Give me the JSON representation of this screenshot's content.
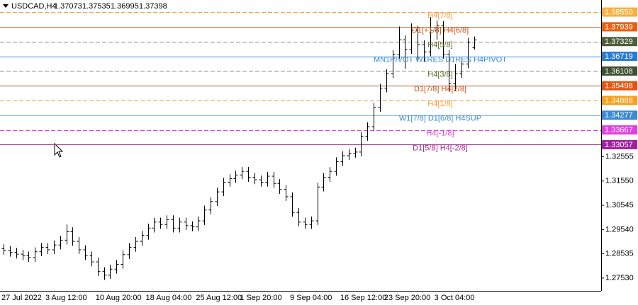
{
  "chart_data": {
    "type": "candlestick",
    "title": "USDCAD,H4",
    "color": "#000000",
    "categories": [
      "27 Jul 2022",
      null,
      null,
      null,
      null,
      null,
      null,
      "3 Aug 12:00",
      null,
      null,
      null,
      null,
      null,
      null,
      null,
      "10 Aug 20:00",
      null,
      null,
      null,
      null,
      null,
      null,
      null,
      "18 Aug 04:00",
      null,
      null,
      null,
      null,
      null,
      null,
      null,
      "25 Aug 12:00",
      null,
      null,
      null,
      null,
      null,
      null,
      "1 Sep 20:00",
      null,
      null,
      null,
      null,
      null,
      null,
      null,
      "9 Sep 04:00",
      null,
      null,
      null,
      null,
      null,
      null,
      null,
      "16 Sep 12:00",
      null,
      null,
      null,
      null,
      null,
      null,
      "23 Sep 20:00",
      null,
      null,
      null,
      null,
      null,
      null,
      null,
      "3 Oct 04:00",
      null,
      null,
      null,
      null,
      null,
      null
    ],
    "open": [
      1.2875,
      1.2868,
      1.286,
      1.2852,
      1.2845,
      1.2838,
      1.2862,
      1.288,
      1.287,
      1.289,
      1.291,
      1.2945,
      1.2905,
      1.287,
      1.2845,
      1.282,
      1.278,
      1.2765,
      1.279,
      1.281,
      1.285,
      1.288,
      1.2905,
      1.293,
      1.296,
      1.2985,
      1.2975,
      1.2995,
      1.296,
      1.2985,
      1.297,
      1.2965,
      1.299,
      1.3035,
      1.307,
      1.311,
      1.315,
      1.3165,
      1.318,
      1.3195,
      1.317,
      1.316,
      1.315,
      1.3175,
      1.3145,
      1.312,
      1.309,
      1.3025,
      1.2985,
      1.2975,
      1.299,
      1.313,
      1.317,
      1.3195,
      1.3235,
      1.326,
      1.327,
      1.3275,
      1.334,
      1.338,
      1.346,
      1.354,
      1.36,
      1.368,
      1.374,
      1.37,
      1.378,
      1.372,
      1.369,
      1.378,
      1.38,
      1.368,
      1.356,
      1.36,
      1.364,
      1.37073
    ],
    "high": [
      1.2893,
      1.2886,
      1.2878,
      1.287,
      1.2863,
      1.288,
      1.2898,
      1.2898,
      1.2908,
      1.2928,
      1.2975,
      1.2963,
      1.2923,
      1.2888,
      1.2863,
      1.2838,
      1.2798,
      1.2808,
      1.2828,
      1.2868,
      1.2898,
      1.2923,
      1.2948,
      1.2978,
      1.3003,
      1.3003,
      1.3013,
      1.3013,
      1.3003,
      1.3003,
      1.2988,
      1.3008,
      1.3053,
      1.3088,
      1.3128,
      1.3168,
      1.3183,
      1.3198,
      1.3213,
      1.3213,
      1.3188,
      1.3178,
      1.3193,
      1.3193,
      1.3163,
      1.3138,
      1.3108,
      1.3043,
      1.3003,
      1.3008,
      1.3148,
      1.3188,
      1.3213,
      1.3253,
      1.3278,
      1.3288,
      1.3293,
      1.3358,
      1.3398,
      1.3478,
      1.3558,
      1.3618,
      1.3698,
      1.3795,
      1.3758,
      1.3808,
      1.3798,
      1.3738,
      1.3835,
      1.382,
      1.3818,
      1.3698,
      1.364,
      1.367,
      1.3748,
      1.37535
    ],
    "low": [
      1.285,
      1.2842,
      1.2834,
      1.2827,
      1.282,
      1.282,
      1.2844,
      1.2852,
      1.2852,
      1.2872,
      1.2892,
      1.2887,
      1.2852,
      1.2827,
      1.2802,
      1.2762,
      1.2745,
      1.275,
      1.2772,
      1.2792,
      1.2832,
      1.2862,
      1.2887,
      1.2912,
      1.2942,
      1.2957,
      1.2957,
      1.2942,
      1.2942,
      1.2952,
      1.2947,
      1.2947,
      1.2972,
      1.3017,
      1.3052,
      1.3092,
      1.3132,
      1.3147,
      1.3162,
      1.3152,
      1.3142,
      1.3132,
      1.3132,
      1.3127,
      1.3102,
      1.3072,
      1.3007,
      1.2967,
      1.2957,
      1.2957,
      1.2972,
      1.3112,
      1.3152,
      1.3177,
      1.3217,
      1.3242,
      1.3252,
      1.3257,
      1.3322,
      1.3362,
      1.3442,
      1.3522,
      1.3582,
      1.3662,
      1.362,
      1.3682,
      1.365,
      1.365,
      1.3672,
      1.374,
      1.3662,
      1.3525,
      1.353,
      1.3582,
      1.3622,
      1.36995
    ],
    "close": [
      1.2868,
      1.286,
      1.2852,
      1.2845,
      1.2838,
      1.2862,
      1.288,
      1.287,
      1.289,
      1.291,
      1.2945,
      1.2905,
      1.287,
      1.2845,
      1.282,
      1.278,
      1.2765,
      1.279,
      1.281,
      1.285,
      1.288,
      1.2905,
      1.293,
      1.296,
      1.2985,
      1.2975,
      1.2995,
      1.296,
      1.2985,
      1.297,
      1.2965,
      1.299,
      1.3035,
      1.307,
      1.311,
      1.315,
      1.3165,
      1.318,
      1.3195,
      1.317,
      1.316,
      1.315,
      1.3175,
      1.3145,
      1.312,
      1.309,
      1.3025,
      1.2985,
      1.2975,
      1.299,
      1.313,
      1.317,
      1.3195,
      1.3235,
      1.326,
      1.327,
      1.3275,
      1.334,
      1.338,
      1.346,
      1.354,
      1.36,
      1.368,
      1.374,
      1.37,
      1.378,
      1.372,
      1.369,
      1.378,
      1.38,
      1.368,
      1.356,
      1.36,
      1.364,
      1.373,
      1.37398
    ],
    "ylim": [
      1.27,
      1.3905
    ],
    "yticks": [
      {
        "value": 1.2753,
        "label": "1.27530"
      },
      {
        "value": 1.28535,
        "label": "1.28535"
      },
      {
        "value": 1.2954,
        "label": "1.29540"
      },
      {
        "value": 1.30545,
        "label": "1.30545"
      },
      {
        "value": 1.3155,
        "label": "1.31550"
      },
      {
        "value": 1.32555,
        "label": "1.32555"
      }
    ],
    "levels": [
      {
        "label": "H4[7/8]",
        "price": {
          "value": 1.3855,
          "label": "1.38550"
        },
        "color": "#f0a040",
        "text_color": "#f0a040",
        "box_color": "#f8b040",
        "dashed": true
      },
      {
        "label": "D1[+1/8] H4[6/8]",
        "price": {
          "value": 1.37939,
          "label": "1.37939"
        },
        "color": "#c8783a",
        "text_color": "#d05010",
        "box_color": "#e86010",
        "dashed": false
      },
      {
        "label": "H4[5/8]",
        "price": {
          "value": 1.37329,
          "label": "1.37329"
        },
        "color": "#8a8a78",
        "text_color": "#5a6e30",
        "box_color": "#4e5e3a",
        "dashed": true
      },
      {
        "label": "MN1PIVOT W1RES D1RES H4PIVOT",
        "price": {
          "value": 1.36719,
          "label": "1.36719"
        },
        "color": "#3a8ad4",
        "text_color": "#3a8ad4",
        "box_color": "#2a7ad0",
        "dashed": false
      },
      {
        "label": "H4[3/8]",
        "price": {
          "value": 1.36108,
          "label": "1.36108"
        },
        "color": "#8a8a78",
        "text_color": "#5a6e30",
        "box_color": "#3e5030",
        "dashed": true
      },
      {
        "label": "D1[7/8] H4[2/8]",
        "price": {
          "value": 1.35498,
          "label": "1.35498"
        },
        "color": "#b05a20",
        "text_color": "#d0501a",
        "box_color": "#e05510",
        "dashed": false
      },
      {
        "label": "H4[1/8]",
        "price": {
          "value": 1.34888,
          "label": "1.34888"
        },
        "color": "#f0a040",
        "text_color": "#f0a040",
        "box_color": "#f5a020",
        "dashed": true
      },
      {
        "label": "W1[7/8] D1[6/8] H4SUP",
        "price": {
          "value": 1.34277,
          "label": "1.34277"
        },
        "color": "#80b8e4",
        "text_color": "#3a8ad4",
        "box_color": "#3a8ad4",
        "dashed": false
      },
      {
        "label": "H4[-1/8]",
        "price": {
          "value": 1.33667,
          "label": "1.33667"
        },
        "color": "#e040e0",
        "text_color": "#e040e0",
        "box_color": "#e040e0",
        "dashed": true
      },
      {
        "label": "D1[5/8] H4[-2/8]",
        "price": {
          "value": 1.33057,
          "label": "1.33057"
        },
        "color": "#a03090",
        "text_color": "#a03090",
        "box_color": "#a020a0",
        "dashed": false
      }
    ]
  }
}
